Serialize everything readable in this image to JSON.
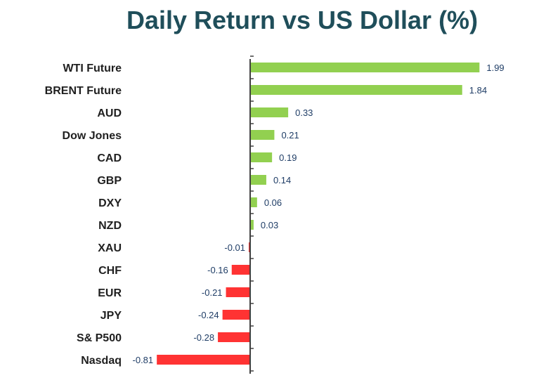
{
  "chart_data": {
    "type": "bar",
    "orientation": "horizontal",
    "title": "Daily Return vs US Dollar (%)",
    "categories": [
      "WTI Future",
      "BRENT Future",
      "AUD",
      "Dow Jones",
      "CAD",
      "GBP",
      "DXY",
      "NZD",
      "XAU",
      "CHF",
      "EUR",
      "JPY",
      "S& P500",
      "Nasdaq"
    ],
    "values": [
      1.99,
      1.84,
      0.33,
      0.21,
      0.19,
      0.14,
      0.06,
      0.03,
      -0.01,
      -0.16,
      -0.21,
      -0.24,
      -0.28,
      -0.81
    ],
    "value_labels": [
      "1.99",
      "1.84",
      "0.33",
      "0.21",
      "0.19",
      "0.14",
      "0.06",
      "0.03",
      "-0.01",
      "-0.16",
      "-0.21",
      "-0.24",
      "-0.28",
      "-0.81"
    ],
    "xlabel": "",
    "ylabel": "",
    "xlim": [
      -0.81,
      1.99
    ],
    "grid": false,
    "legend": "none",
    "colors": {
      "positive": "#92d050",
      "negative": "#ff3333",
      "axis": "#404040",
      "title": "#1f4e5a",
      "value_label": "#1f3d66",
      "category_label": "#1f1f1f"
    }
  }
}
